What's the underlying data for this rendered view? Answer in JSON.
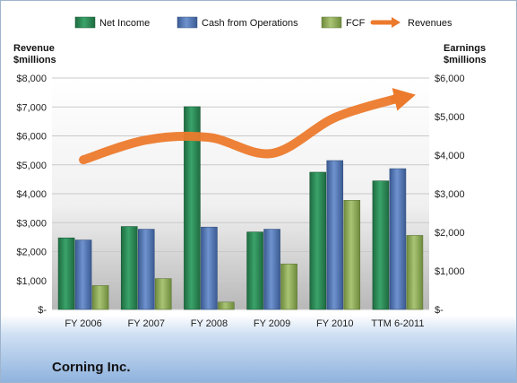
{
  "chart_data": {
    "type": "bar",
    "title": "Corning Inc.",
    "categories": [
      "FY 2006",
      "FY 2007",
      "FY 2008",
      "FY 2009",
      "FY 2010",
      "TTM 6-2011"
    ],
    "series": [
      {
        "name": "Net Income",
        "axis": "right",
        "color": "#2e8b57",
        "values": [
          1855,
          2150,
          5257,
          2008,
          3558,
          3333
        ]
      },
      {
        "name": "Cash from Operations",
        "axis": "right",
        "color": "#4f74b3",
        "values": [
          1800,
          2080,
          2135,
          2080,
          3860,
          3650
        ]
      },
      {
        "name": "FCF",
        "axis": "right",
        "color": "#8fae5a",
        "values": [
          620,
          800,
          190,
          1180,
          2830,
          1920
        ]
      },
      {
        "name": "Revenues",
        "axis": "left",
        "type": "line",
        "color": "#ec7a2c",
        "values": [
          5174,
          5860,
          5948,
          5395,
          6632,
          7300
        ]
      }
    ],
    "left_axis": {
      "label_line1": "Revenue",
      "label_line2": "$millions",
      "ylim": [
        0,
        8000
      ],
      "ticks": [
        "$-",
        "$1,000",
        "$2,000",
        "$3,000",
        "$4,000",
        "$5,000",
        "$6,000",
        "$7,000",
        "$8,000"
      ],
      "tick_values": [
        0,
        1000,
        2000,
        3000,
        4000,
        5000,
        6000,
        7000,
        8000
      ]
    },
    "right_axis": {
      "label_line1": "Earnings",
      "label_line2": "$millions",
      "ylim": [
        0,
        6000
      ],
      "ticks": [
        "$-",
        "$1,000",
        "$2,000",
        "$3,000",
        "$4,000",
        "$5,000",
        "$6,000"
      ],
      "tick_values": [
        0,
        1000,
        2000,
        3000,
        4000,
        5000,
        6000
      ]
    },
    "grid": true,
    "legend": "top"
  }
}
